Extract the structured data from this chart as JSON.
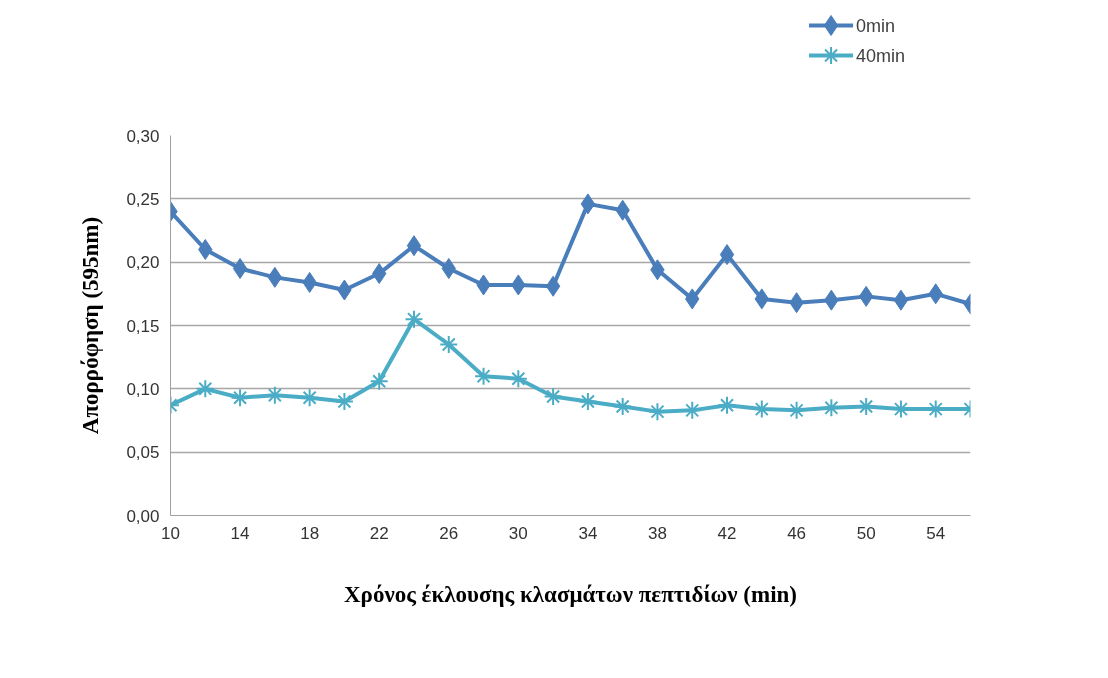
{
  "chart_data": {
    "type": "line",
    "xlabel": "Χρόνος έκλουσης κλασμάτων πεπτιδίων (min)",
    "ylabel": "Απορρόφηση (595nm)",
    "x": [
      10,
      12,
      14,
      16,
      18,
      20,
      22,
      24,
      26,
      28,
      30,
      32,
      34,
      36,
      38,
      40,
      42,
      44,
      46,
      48,
      50,
      52,
      54,
      56
    ],
    "series": [
      {
        "name": "0min",
        "color": "#4a7ebb",
        "marker": "diamond",
        "values": [
          0.24,
          0.21,
          0.195,
          0.188,
          0.184,
          0.178,
          0.191,
          0.213,
          0.195,
          0.182,
          0.182,
          0.181,
          0.246,
          0.241,
          0.194,
          0.171,
          0.206,
          0.171,
          0.168,
          0.17,
          0.173,
          0.17,
          0.175,
          0.167
        ]
      },
      {
        "name": "40min",
        "color": "#4bacc6",
        "marker": "cross",
        "values": [
          0.087,
          0.1,
          0.093,
          0.095,
          0.093,
          0.09,
          0.106,
          0.155,
          0.135,
          0.11,
          0.108,
          0.094,
          0.09,
          0.086,
          0.082,
          0.083,
          0.087,
          0.084,
          0.083,
          0.085,
          0.086,
          0.084,
          0.084,
          0.084
        ]
      }
    ],
    "xlim": [
      10,
      56
    ],
    "xticks": [
      10,
      14,
      18,
      22,
      26,
      30,
      34,
      38,
      42,
      46,
      50,
      54
    ],
    "ylim": [
      0,
      0.3
    ],
    "yticks": [
      {
        "value": 0,
        "label": "0,00"
      },
      {
        "value": 0.05,
        "label": "0,05"
      },
      {
        "value": 0.1,
        "label": "0,10"
      },
      {
        "value": 0.15,
        "label": "0,15"
      },
      {
        "value": 0.2,
        "label": "0,20"
      },
      {
        "value": 0.25,
        "label": "0,25"
      },
      {
        "value": 0.3,
        "label": "0,30"
      }
    ],
    "grid": "y",
    "legend": "top right",
    "line_style": "solid"
  }
}
